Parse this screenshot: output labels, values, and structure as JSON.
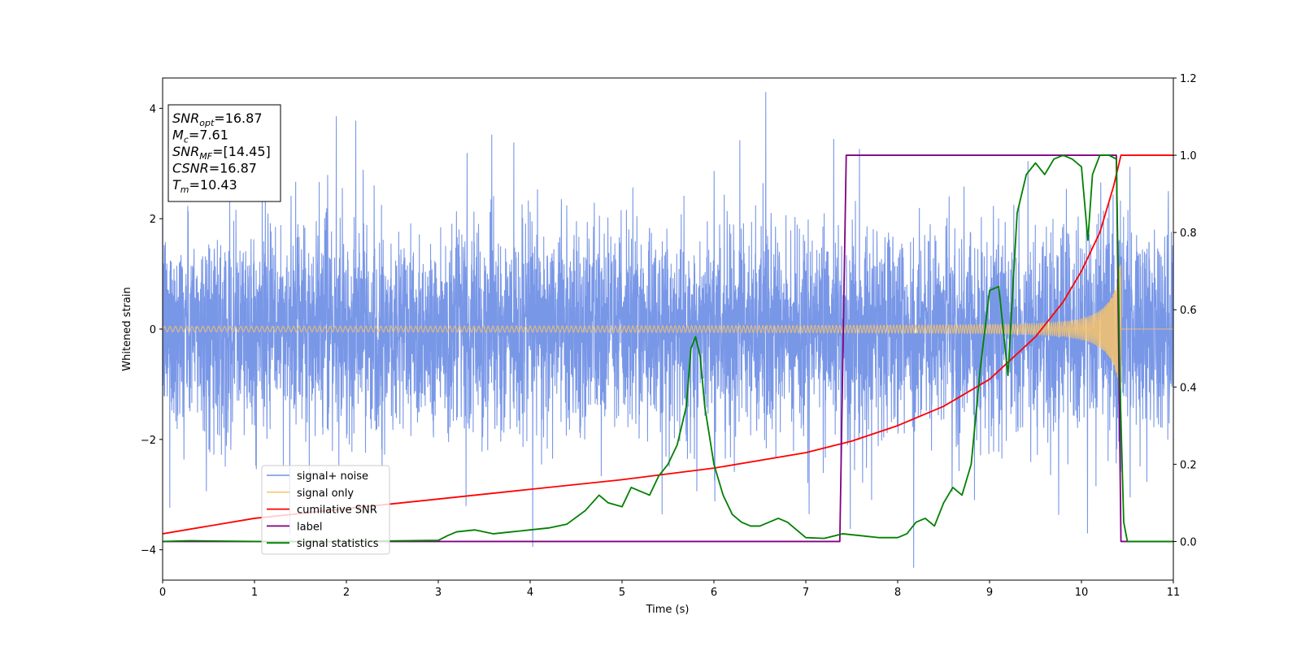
{
  "chart_data": {
    "type": "line",
    "xlabel": "Time (s)",
    "ylabel": "Whitened strain",
    "xlim": [
      0,
      11
    ],
    "ylim_left": [
      -4.55,
      4.55
    ],
    "ylim_right": [
      -0.1,
      1.2
    ],
    "x_ticks": [
      "0",
      "1",
      "2",
      "3",
      "4",
      "5",
      "6",
      "7",
      "8",
      "9",
      "10",
      "11"
    ],
    "y_ticks_left": [
      "−4",
      "−2",
      "0",
      "2",
      "4"
    ],
    "y_ticks_right": [
      "0.0",
      "0.2",
      "0.4",
      "0.6",
      "0.8",
      "1.0",
      "1.2"
    ],
    "y_tick_values_left": [
      -4,
      -2,
      0,
      2,
      4
    ],
    "y_tick_values_right": [
      0.0,
      0.2,
      0.4,
      0.6,
      0.8,
      1.0,
      1.2
    ],
    "x_tick_values": [
      0,
      1,
      2,
      3,
      4,
      5,
      6,
      7,
      8,
      9,
      10,
      11
    ],
    "legend_position": "lower-left",
    "info_box": {
      "lines": [
        {
          "main": "SNR",
          "sub": "opt",
          "value": "=16.87"
        },
        {
          "main": "M",
          "sub": "c",
          "value": "=7.61"
        },
        {
          "main": "SNR",
          "sub": "MF",
          "value": "=[14.45]"
        },
        {
          "main": "CSNR",
          "sub": "",
          "value": "=16.87"
        },
        {
          "main": "T",
          "sub": "m",
          "value": "=10.43"
        }
      ]
    },
    "series": [
      {
        "name": "signal+ noise",
        "color": "#7291e6",
        "axis": "left",
        "kind": "noise",
        "envelope_std": 1.0,
        "merger_time": 10.43,
        "end_time": 11.0
      },
      {
        "name": "signal only",
        "color": "#f7c36b",
        "axis": "left",
        "kind": "chirp",
        "start_amplitude": 0.05,
        "peak_amplitude": 1.8,
        "merger_time": 10.43
      },
      {
        "name": "cumilative SNR",
        "color": "#ff0000",
        "axis": "right",
        "x": [
          0,
          1,
          2,
          3,
          4,
          5,
          6,
          7,
          7.5,
          8,
          8.5,
          9,
          9.5,
          9.8,
          10,
          10.2,
          10.35,
          10.43,
          11
        ],
        "y": [
          0.02,
          0.06,
          0.085,
          0.11,
          0.135,
          0.16,
          0.19,
          0.23,
          0.26,
          0.3,
          0.35,
          0.42,
          0.53,
          0.62,
          0.7,
          0.8,
          0.92,
          1.0,
          1.0
        ]
      },
      {
        "name": "label",
        "color": "#800080",
        "axis": "right",
        "x": [
          0,
          7.37,
          7.44,
          10.38,
          10.43,
          11
        ],
        "y": [
          0.0,
          0.0,
          1.0,
          1.0,
          0.0,
          0.0
        ]
      },
      {
        "name": "signal statistics",
        "color": "#008000",
        "axis": "right",
        "x": [
          0,
          0.3,
          1,
          2,
          3,
          3.1,
          3.2,
          3.4,
          3.6,
          3.8,
          4.0,
          4.2,
          4.4,
          4.6,
          4.75,
          4.85,
          5.0,
          5.1,
          5.2,
          5.3,
          5.4,
          5.5,
          5.6,
          5.7,
          5.75,
          5.8,
          5.85,
          5.9,
          6.0,
          6.1,
          6.2,
          6.3,
          6.4,
          6.5,
          6.6,
          6.7,
          6.8,
          6.9,
          7.0,
          7.2,
          7.4,
          7.6,
          7.8,
          8.0,
          8.1,
          8.2,
          8.3,
          8.4,
          8.5,
          8.6,
          8.65,
          8.7,
          8.8,
          8.9,
          9.0,
          9.1,
          9.2,
          9.3,
          9.4,
          9.5,
          9.6,
          9.7,
          9.8,
          9.9,
          10.0,
          10.07,
          10.12,
          10.2,
          10.3,
          10.38,
          10.42,
          10.46,
          10.5,
          11
        ],
        "y": [
          0.0,
          0.002,
          0.0,
          0.0,
          0.003,
          0.015,
          0.025,
          0.03,
          0.02,
          0.025,
          0.03,
          0.035,
          0.045,
          0.08,
          0.12,
          0.1,
          0.09,
          0.14,
          0.13,
          0.12,
          0.17,
          0.2,
          0.25,
          0.35,
          0.5,
          0.53,
          0.48,
          0.35,
          0.2,
          0.12,
          0.07,
          0.05,
          0.04,
          0.04,
          0.05,
          0.06,
          0.05,
          0.03,
          0.01,
          0.008,
          0.02,
          0.015,
          0.01,
          0.01,
          0.02,
          0.05,
          0.06,
          0.04,
          0.1,
          0.14,
          0.13,
          0.12,
          0.2,
          0.45,
          0.65,
          0.66,
          0.43,
          0.85,
          0.95,
          0.98,
          0.95,
          0.99,
          1.0,
          0.99,
          0.97,
          0.78,
          0.95,
          1.0,
          1.0,
          0.99,
          0.4,
          0.05,
          0.0,
          0.0
        ]
      }
    ]
  }
}
